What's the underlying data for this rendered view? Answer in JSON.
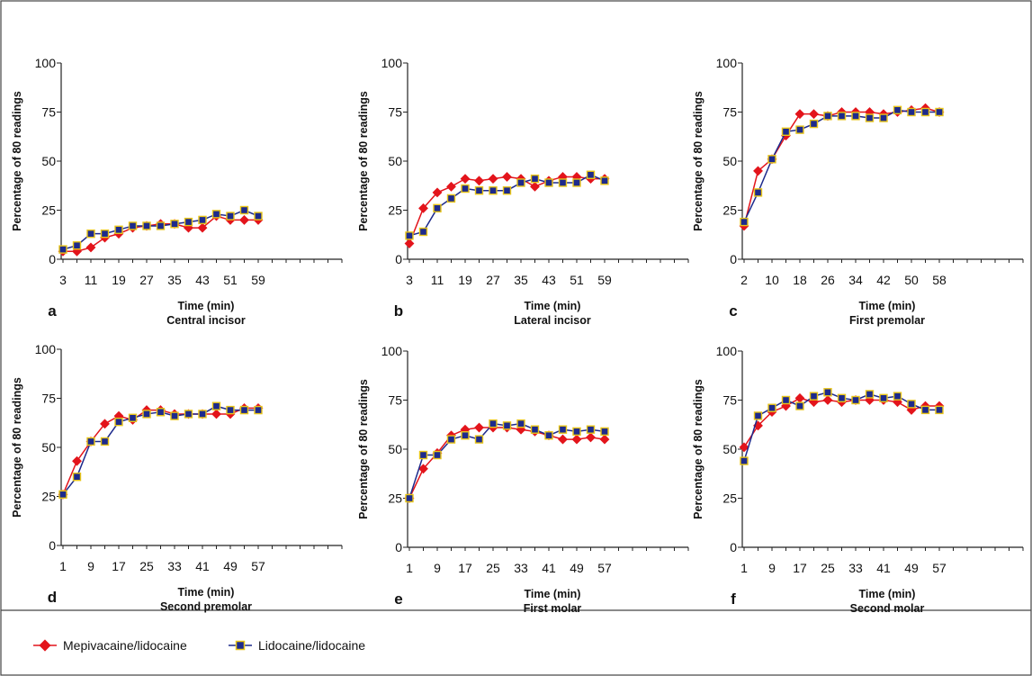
{
  "colors": {
    "series1": "#e3141b",
    "series1_stroke": "#e3141b",
    "series2_fill": "#1d2a8c",
    "series2_stroke": "#e8c51a",
    "series2_line": "#1d2a8c"
  },
  "legend": {
    "series1_label": "Mepivacaine/lidocaine",
    "series2_label": "Lidocaine/lidocaine"
  },
  "chart_data": [
    {
      "type": "line",
      "panel": "a",
      "title": "Central incisor",
      "xlabel": "Time (min)",
      "ylabel": "Percentage of 80 readings",
      "ylim": [
        0,
        100
      ],
      "yticks": [
        0,
        25,
        50,
        75,
        100
      ],
      "xticks": [
        "3",
        "11",
        "19",
        "27",
        "35",
        "43",
        "51",
        "59"
      ],
      "x": [
        3,
        7,
        11,
        15,
        19,
        23,
        27,
        31,
        35,
        39,
        43,
        47,
        51,
        55,
        59
      ],
      "series": [
        {
          "name": "Mepivacaine/lidocaine",
          "values": [
            4,
            4,
            6,
            11,
            13,
            16,
            17,
            18,
            18,
            16,
            16,
            22,
            20,
            20,
            20
          ]
        },
        {
          "name": "Lidocaine/lidocaine",
          "values": [
            5,
            7,
            13,
            13,
            15,
            17,
            17,
            17,
            18,
            19,
            20,
            23,
            22,
            25,
            22
          ]
        }
      ]
    },
    {
      "type": "line",
      "panel": "b",
      "title": "Lateral incisor",
      "xlabel": "Time (min)",
      "ylabel": "Percentage of 80 readings",
      "ylim": [
        0,
        100
      ],
      "yticks": [
        0,
        25,
        50,
        75,
        100
      ],
      "xticks": [
        "3",
        "11",
        "19",
        "27",
        "35",
        "43",
        "51",
        "59"
      ],
      "x": [
        3,
        7,
        11,
        15,
        19,
        23,
        27,
        31,
        35,
        39,
        43,
        47,
        51,
        55,
        59
      ],
      "series": [
        {
          "name": "Mepivacaine/lidocaine",
          "values": [
            8,
            26,
            34,
            37,
            41,
            40,
            41,
            42,
            41,
            37,
            40,
            42,
            42,
            41,
            41
          ]
        },
        {
          "name": "Lidocaine/lidocaine",
          "values": [
            12,
            14,
            26,
            31,
            36,
            35,
            35,
            35,
            39,
            41,
            39,
            39,
            39,
            43,
            40
          ]
        }
      ]
    },
    {
      "type": "line",
      "panel": "c",
      "title": "First premolar",
      "xlabel": "Time (min)",
      "ylabel": "Percentage of 80 readings",
      "ylim": [
        0,
        100
      ],
      "yticks": [
        0,
        25,
        50,
        75,
        100
      ],
      "xticks": [
        "2",
        "10",
        "18",
        "26",
        "34",
        "42",
        "50",
        "58"
      ],
      "x": [
        2,
        6,
        10,
        14,
        18,
        22,
        26,
        30,
        34,
        38,
        42,
        46,
        50,
        54,
        58
      ],
      "series": [
        {
          "name": "Mepivacaine/lidocaine",
          "values": [
            17,
            45,
            51,
            63,
            74,
            74,
            73,
            75,
            75,
            75,
            74,
            75,
            76,
            77,
            75
          ]
        },
        {
          "name": "Lidocaine/lidocaine",
          "values": [
            19,
            34,
            51,
            65,
            66,
            69,
            73,
            73,
            73,
            72,
            72,
            76,
            75,
            75,
            75
          ]
        }
      ]
    },
    {
      "type": "line",
      "panel": "d",
      "title": "Second premolar",
      "xlabel": "Time (min)",
      "ylabel": "Percentage of 80 readings",
      "ylim": [
        0,
        100
      ],
      "yticks": [
        0,
        25,
        50,
        75,
        100
      ],
      "xticks": [
        "1",
        "9",
        "17",
        "25",
        "33",
        "41",
        "49",
        "57"
      ],
      "x": [
        1,
        5,
        9,
        13,
        17,
        21,
        25,
        29,
        33,
        37,
        41,
        45,
        49,
        53,
        57
      ],
      "series": [
        {
          "name": "Mepivacaine/lidocaine",
          "values": [
            26,
            43,
            53,
            62,
            66,
            64,
            69,
            69,
            67,
            67,
            67,
            67,
            67,
            70,
            70
          ]
        },
        {
          "name": "Lidocaine/lidocaine",
          "values": [
            26,
            35,
            53,
            53,
            63,
            65,
            67,
            68,
            66,
            67,
            67,
            71,
            69,
            69,
            69
          ]
        }
      ]
    },
    {
      "type": "line",
      "panel": "e",
      "title": "First molar",
      "xlabel": "Time (min)",
      "ylabel": "Percentage of 80 readings",
      "ylim": [
        0,
        100
      ],
      "yticks": [
        0,
        25,
        50,
        75,
        100
      ],
      "xticks": [
        "1",
        "9",
        "17",
        "25",
        "33",
        "41",
        "49",
        "57"
      ],
      "x": [
        1,
        5,
        9,
        13,
        17,
        21,
        25,
        29,
        33,
        37,
        41,
        45,
        49,
        53,
        57
      ],
      "series": [
        {
          "name": "Mepivacaine/lidocaine",
          "values": [
            25,
            40,
            48,
            57,
            60,
            61,
            61,
            61,
            60,
            59,
            57,
            55,
            55,
            56,
            55
          ]
        },
        {
          "name": "Lidocaine/lidocaine",
          "values": [
            25,
            47,
            47,
            55,
            57,
            55,
            63,
            62,
            63,
            60,
            57,
            60,
            59,
            60,
            59
          ]
        }
      ]
    },
    {
      "type": "line",
      "panel": "f",
      "title": "Second molar",
      "xlabel": "Time (min)",
      "ylabel": "Percentage of 80 readings",
      "ylim": [
        0,
        100
      ],
      "yticks": [
        0,
        25,
        50,
        75,
        100
      ],
      "xticks": [
        "1",
        "9",
        "17",
        "25",
        "33",
        "41",
        "49",
        "57"
      ],
      "x": [
        1,
        5,
        9,
        13,
        17,
        21,
        25,
        29,
        33,
        37,
        41,
        45,
        49,
        53,
        57
      ],
      "series": [
        {
          "name": "Mepivacaine/lidocaine",
          "values": [
            51,
            62,
            69,
            72,
            76,
            74,
            75,
            74,
            75,
            75,
            75,
            74,
            70,
            72,
            72
          ]
        },
        {
          "name": "Lidocaine/lidocaine",
          "values": [
            44,
            67,
            71,
            75,
            72,
            77,
            79,
            76,
            75,
            78,
            76,
            77,
            73,
            70,
            70
          ]
        }
      ]
    }
  ]
}
